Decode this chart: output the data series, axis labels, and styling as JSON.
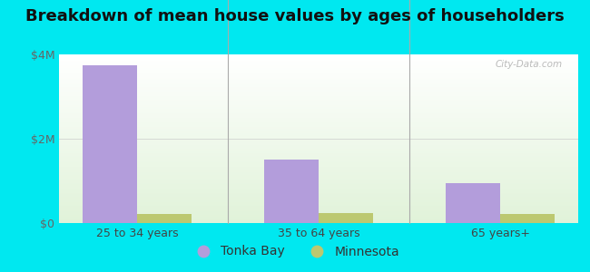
{
  "title": "Breakdown of mean house values by ages of householders",
  "categories": [
    "25 to 34 years",
    "35 to 64 years",
    "65 years+"
  ],
  "tonka_bay": [
    3750000,
    1500000,
    950000
  ],
  "minnesota": [
    220000,
    240000,
    210000
  ],
  "ylim": [
    0,
    4000000
  ],
  "yticks": [
    0,
    2000000,
    4000000
  ],
  "ytick_labels": [
    "$0",
    "$2M",
    "$4M"
  ],
  "bar_width": 0.3,
  "tonka_color": "#b39ddb",
  "minnesota_color": "#bcc870",
  "background_outer": "#00e8f0",
  "watermark_text": "City-Data.com",
  "legend_tonka": "Tonka Bay",
  "legend_minnesota": "Minnesota",
  "title_fontsize": 13,
  "tick_fontsize": 9,
  "legend_fontsize": 10
}
